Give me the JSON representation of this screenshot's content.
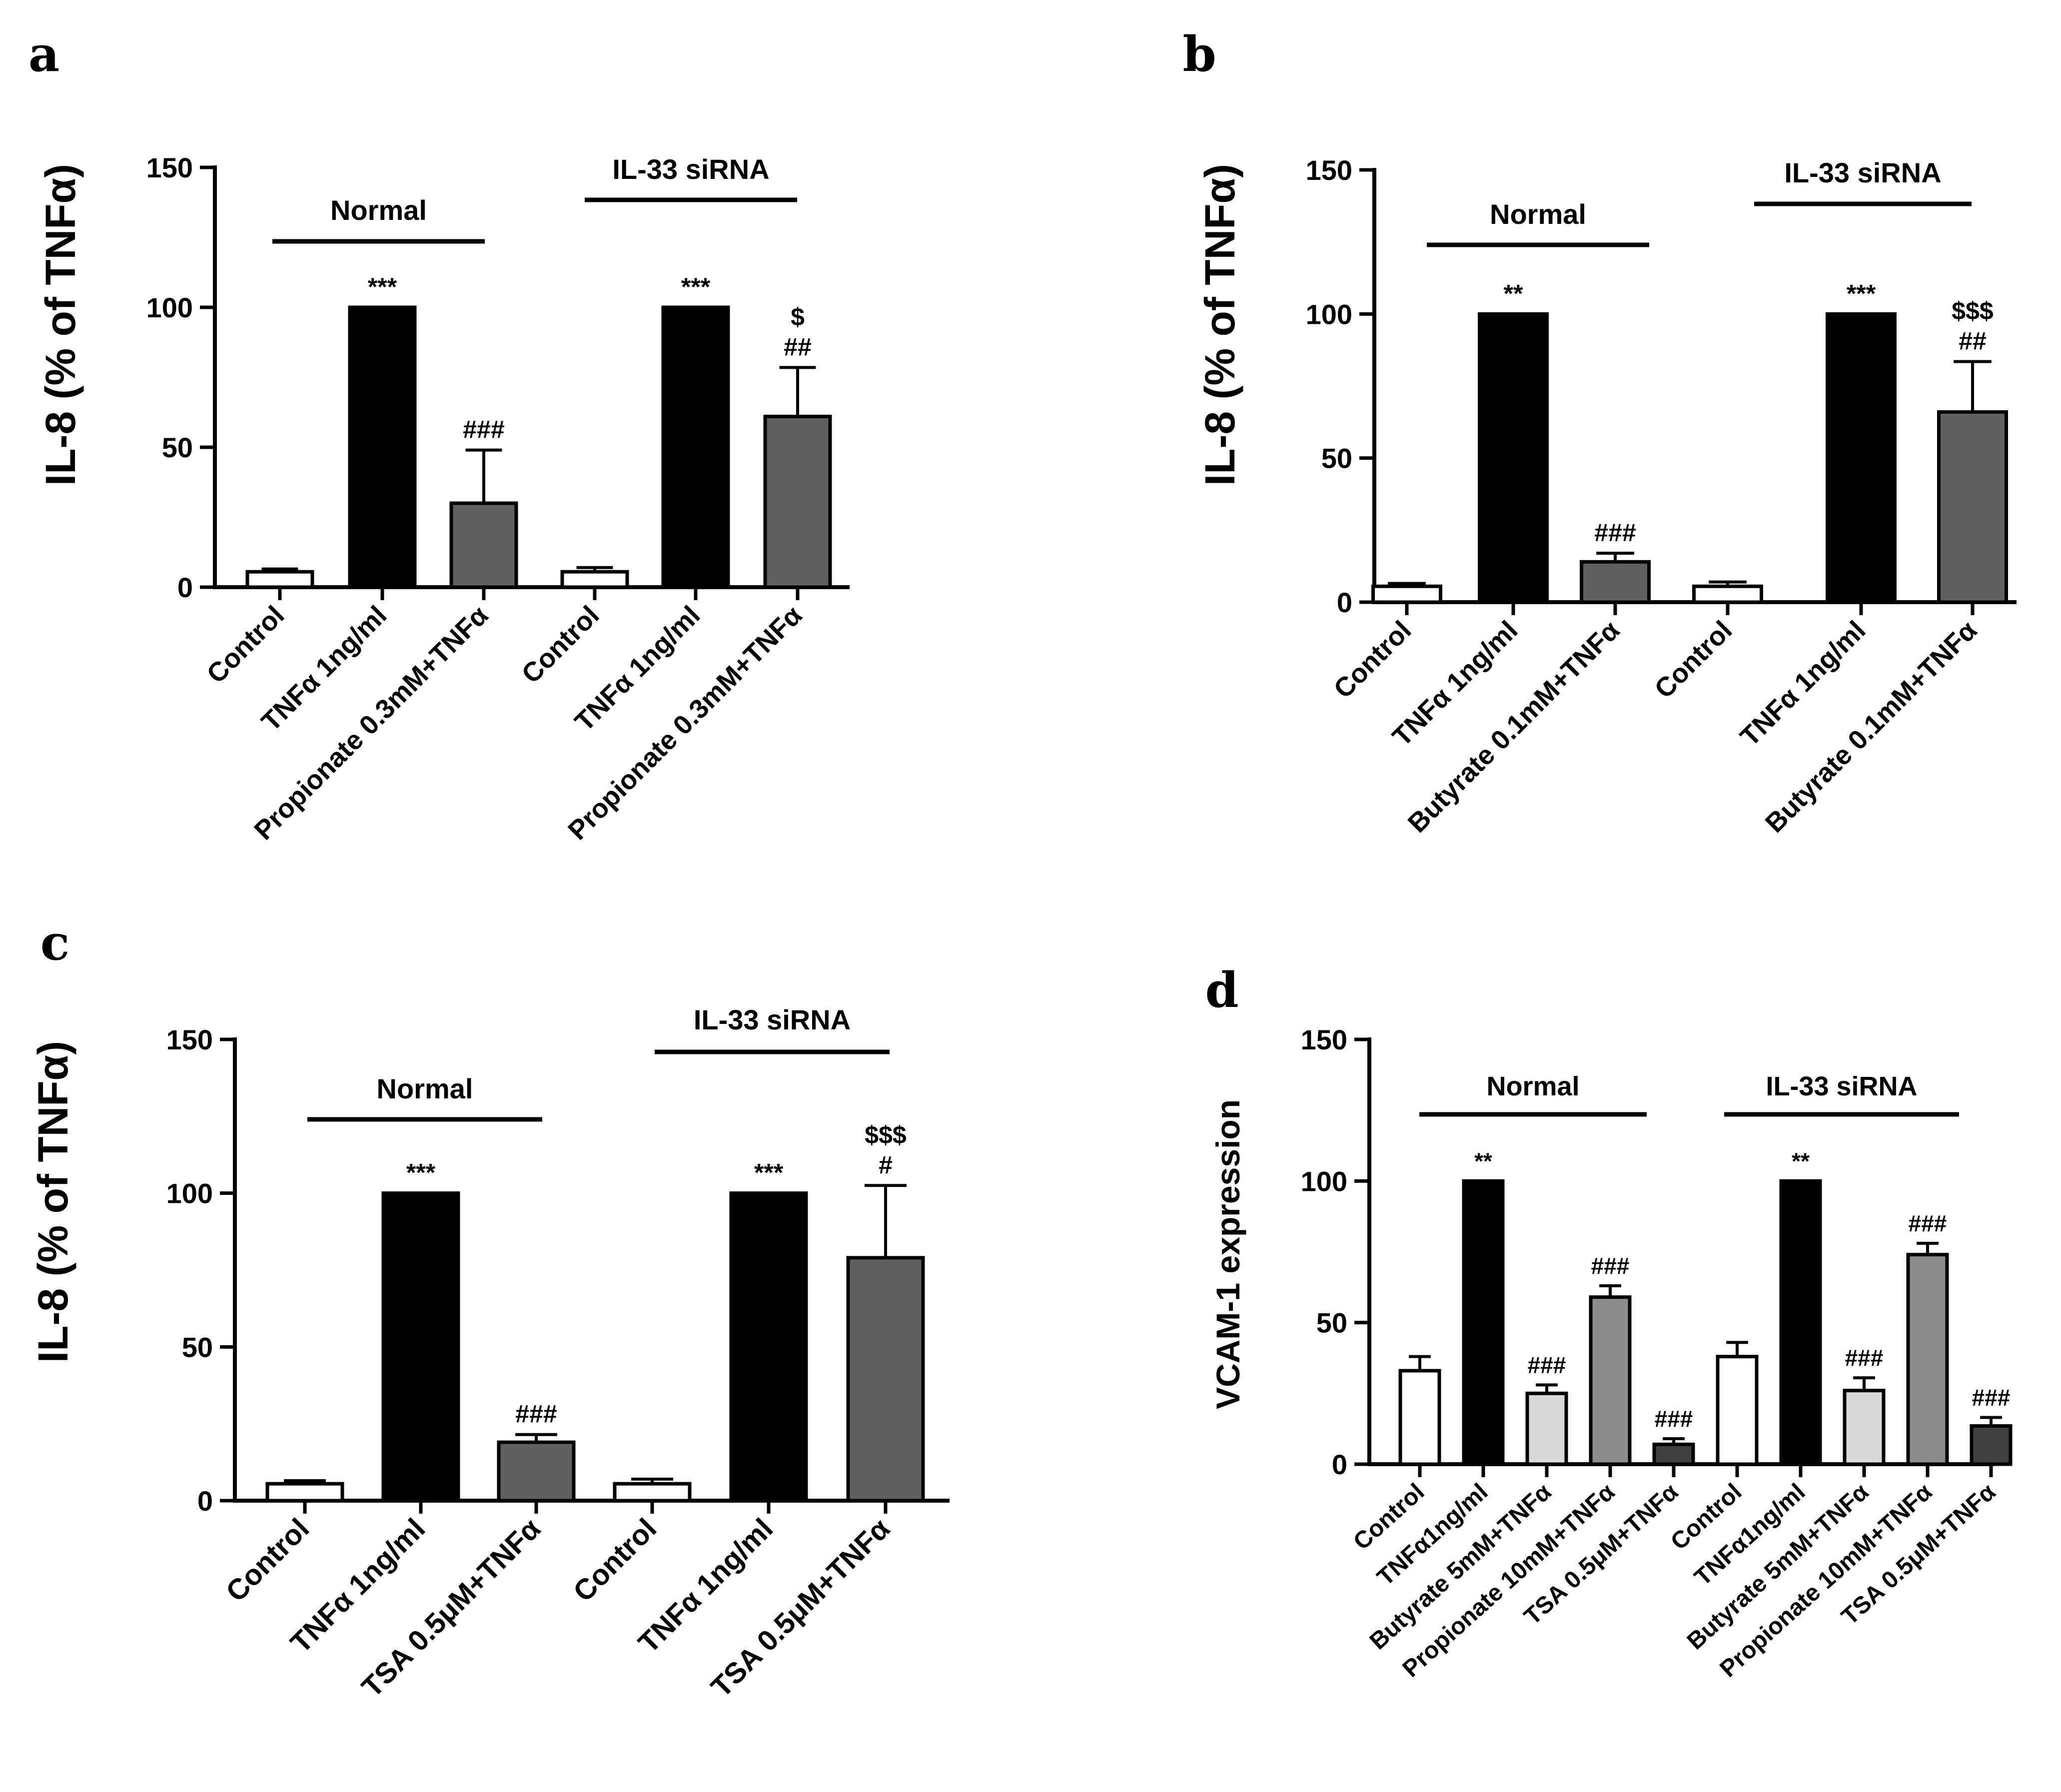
{
  "colors": {
    "control": "#ffffff",
    "tnf": "#000000",
    "treatment": "#606060",
    "butyrate_d": "#d9d9d9",
    "propionate_d": "#8c8c8c",
    "tsa_d": "#404040",
    "axis": "#000000"
  },
  "chart_data": [
    {
      "panel": "a",
      "type": "bar",
      "ylabel": "IL-8 (% of TNFα)",
      "ylim": [
        0,
        150
      ],
      "yticks": [
        0,
        50,
        100,
        150
      ],
      "groups": [
        {
          "label": "Normal",
          "from": 0,
          "to": 2
        },
        {
          "label": "IL-33 siRNA",
          "from": 3,
          "to": 5
        }
      ],
      "categories": [
        "Control",
        "TNFα 1ng/ml",
        "Propionate 0.3mM+TNFα",
        "Control",
        "TNFα 1ng/ml",
        "Propionate 0.3mM+TNFα"
      ],
      "values": [
        5.5,
        100,
        30,
        5.5,
        100,
        61
      ],
      "errors": [
        1,
        0,
        19,
        1.5,
        0,
        17.5
      ],
      "colorKeys": [
        "control",
        "tnf",
        "treatment",
        "control",
        "tnf",
        "treatment"
      ],
      "annotations": [
        [],
        [
          "***"
        ],
        [
          "###"
        ],
        [],
        [
          "***"
        ],
        [
          "$",
          "##"
        ]
      ]
    },
    {
      "panel": "b",
      "type": "bar",
      "ylabel": "IL-8 (% of TNFα)",
      "ylim": [
        0,
        150
      ],
      "yticks": [
        0,
        50,
        100,
        150
      ],
      "groups": [
        {
          "label": "Normal",
          "from": 0,
          "to": 2
        },
        {
          "label": "IL-33 siRNA",
          "from": 3,
          "to": 5
        }
      ],
      "categories": [
        "Control",
        "TNFα 1ng/ml",
        "Butyrate 0.1mM+TNFα",
        "Control",
        "TNFα 1ng/ml",
        "Butyrate 0.1mM+TNFα"
      ],
      "values": [
        5.5,
        100,
        14,
        5.5,
        100,
        66
      ],
      "errors": [
        1,
        0,
        3,
        1.5,
        0,
        17.5
      ],
      "colorKeys": [
        "control",
        "tnf",
        "treatment",
        "control",
        "tnf",
        "treatment"
      ],
      "annotations": [
        [],
        [
          "**"
        ],
        [
          "###"
        ],
        [],
        [
          "***"
        ],
        [
          "$$$",
          "##"
        ]
      ]
    },
    {
      "panel": "c",
      "type": "bar",
      "ylabel": "IL-8 (% of TNFα)",
      "ylim": [
        0,
        150
      ],
      "yticks": [
        0,
        50,
        100,
        150
      ],
      "groups": [
        {
          "label": "Normal",
          "from": 0,
          "to": 2
        },
        {
          "label": "IL-33 siRNA",
          "from": 3,
          "to": 5
        }
      ],
      "categories": [
        "Control",
        "TNFα 1ng/ml",
        "TSA 0.5μM+TNFα",
        "Control",
        "TNFα 1ng/ml",
        "TSA 0.5μM+TNFα"
      ],
      "values": [
        5.5,
        100,
        19,
        5.5,
        100,
        79
      ],
      "errors": [
        1,
        0,
        2.5,
        1.5,
        0,
        23.5
      ],
      "colorKeys": [
        "control",
        "tnf",
        "treatment",
        "control",
        "tnf",
        "treatment"
      ],
      "annotations": [
        [],
        [
          "***"
        ],
        [
          "###"
        ],
        [],
        [
          "***"
        ],
        [
          "$$$",
          "#"
        ]
      ]
    },
    {
      "panel": "d",
      "type": "bar",
      "ylabel": "VCAM-1 expression",
      "ylim": [
        0,
        150
      ],
      "yticks": [
        0,
        50,
        100,
        150
      ],
      "groups": [
        {
          "label": "Normal",
          "from": 0,
          "to": 4
        },
        {
          "label": "IL-33 siRNA",
          "from": 5,
          "to": 9
        }
      ],
      "categories": [
        "Control",
        "TNFα1ng/ml",
        "Butyrate 5mM+TNFα",
        "Propionate 10mM+TNFα",
        "TSA 0.5μM+TNFα",
        "Control",
        "TNFα1ng/ml",
        "Butyrate 5mM+TNFα",
        "Propionate 10mM+TNFα",
        "TSA 0.5μM+TNFα"
      ],
      "values": [
        33,
        100,
        25,
        59,
        7,
        38,
        100,
        26,
        74,
        13.5
      ],
      "errors": [
        5,
        0,
        3,
        4,
        2,
        5,
        0,
        4.5,
        4,
        3
      ],
      "colorKeys": [
        "control",
        "tnf",
        "butyrate_d",
        "propionate_d",
        "tsa_d",
        "control",
        "tnf",
        "butyrate_d",
        "propionate_d",
        "tsa_d"
      ],
      "annotations": [
        [],
        [
          "**"
        ],
        [
          "###"
        ],
        [
          "###"
        ],
        [
          "###"
        ],
        [],
        [
          "**"
        ],
        [
          "###"
        ],
        [
          "###"
        ],
        [
          "###"
        ]
      ]
    }
  ]
}
